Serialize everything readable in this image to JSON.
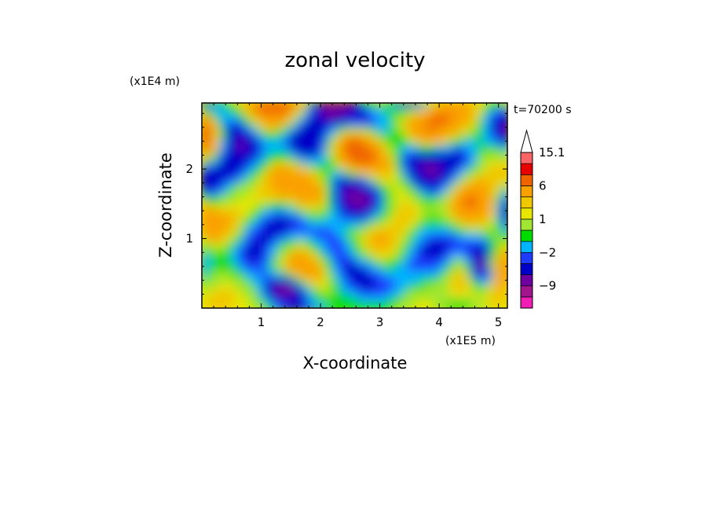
{
  "chart_data": {
    "type": "heatmap",
    "title": "zonal velocity",
    "xlabel": "X-coordinate",
    "ylabel": "Z-coordinate",
    "x_unit": "(x1E5 m)",
    "y_unit": "(x1E4 m)",
    "time_label": "t=70200 s",
    "xlim": [
      0,
      5.15
    ],
    "ylim": [
      0,
      2.95
    ],
    "x_ticks": [
      "1",
      "2",
      "3",
      "4",
      "5"
    ],
    "x_tick_values": [
      1,
      2,
      3,
      4,
      5
    ],
    "y_ticks": [
      "1",
      "2"
    ],
    "y_tick_values": [
      1,
      2
    ],
    "grid": false,
    "colorbar": {
      "labels": [
        "15.1",
        "6",
        "1",
        "−2",
        "−9"
      ],
      "label_values": [
        15.1,
        6,
        1,
        -2,
        -9
      ],
      "levels": [
        -15,
        -12,
        -9,
        -6,
        -3,
        -2,
        -1,
        0,
        1,
        2,
        3,
        6,
        9,
        12,
        15.1
      ],
      "colors": [
        "#f01eb4",
        "#a0148c",
        "#6e00a0",
        "#0000c8",
        "#1e3cff",
        "#00b4ff",
        "#00dc00",
        "#a0e632",
        "#e6e600",
        "#f0c800",
        "#faa000",
        "#f06400",
        "#e60000",
        "#fa6464",
        "#ffc8c8"
      ],
      "extend_top": true
    }
  }
}
